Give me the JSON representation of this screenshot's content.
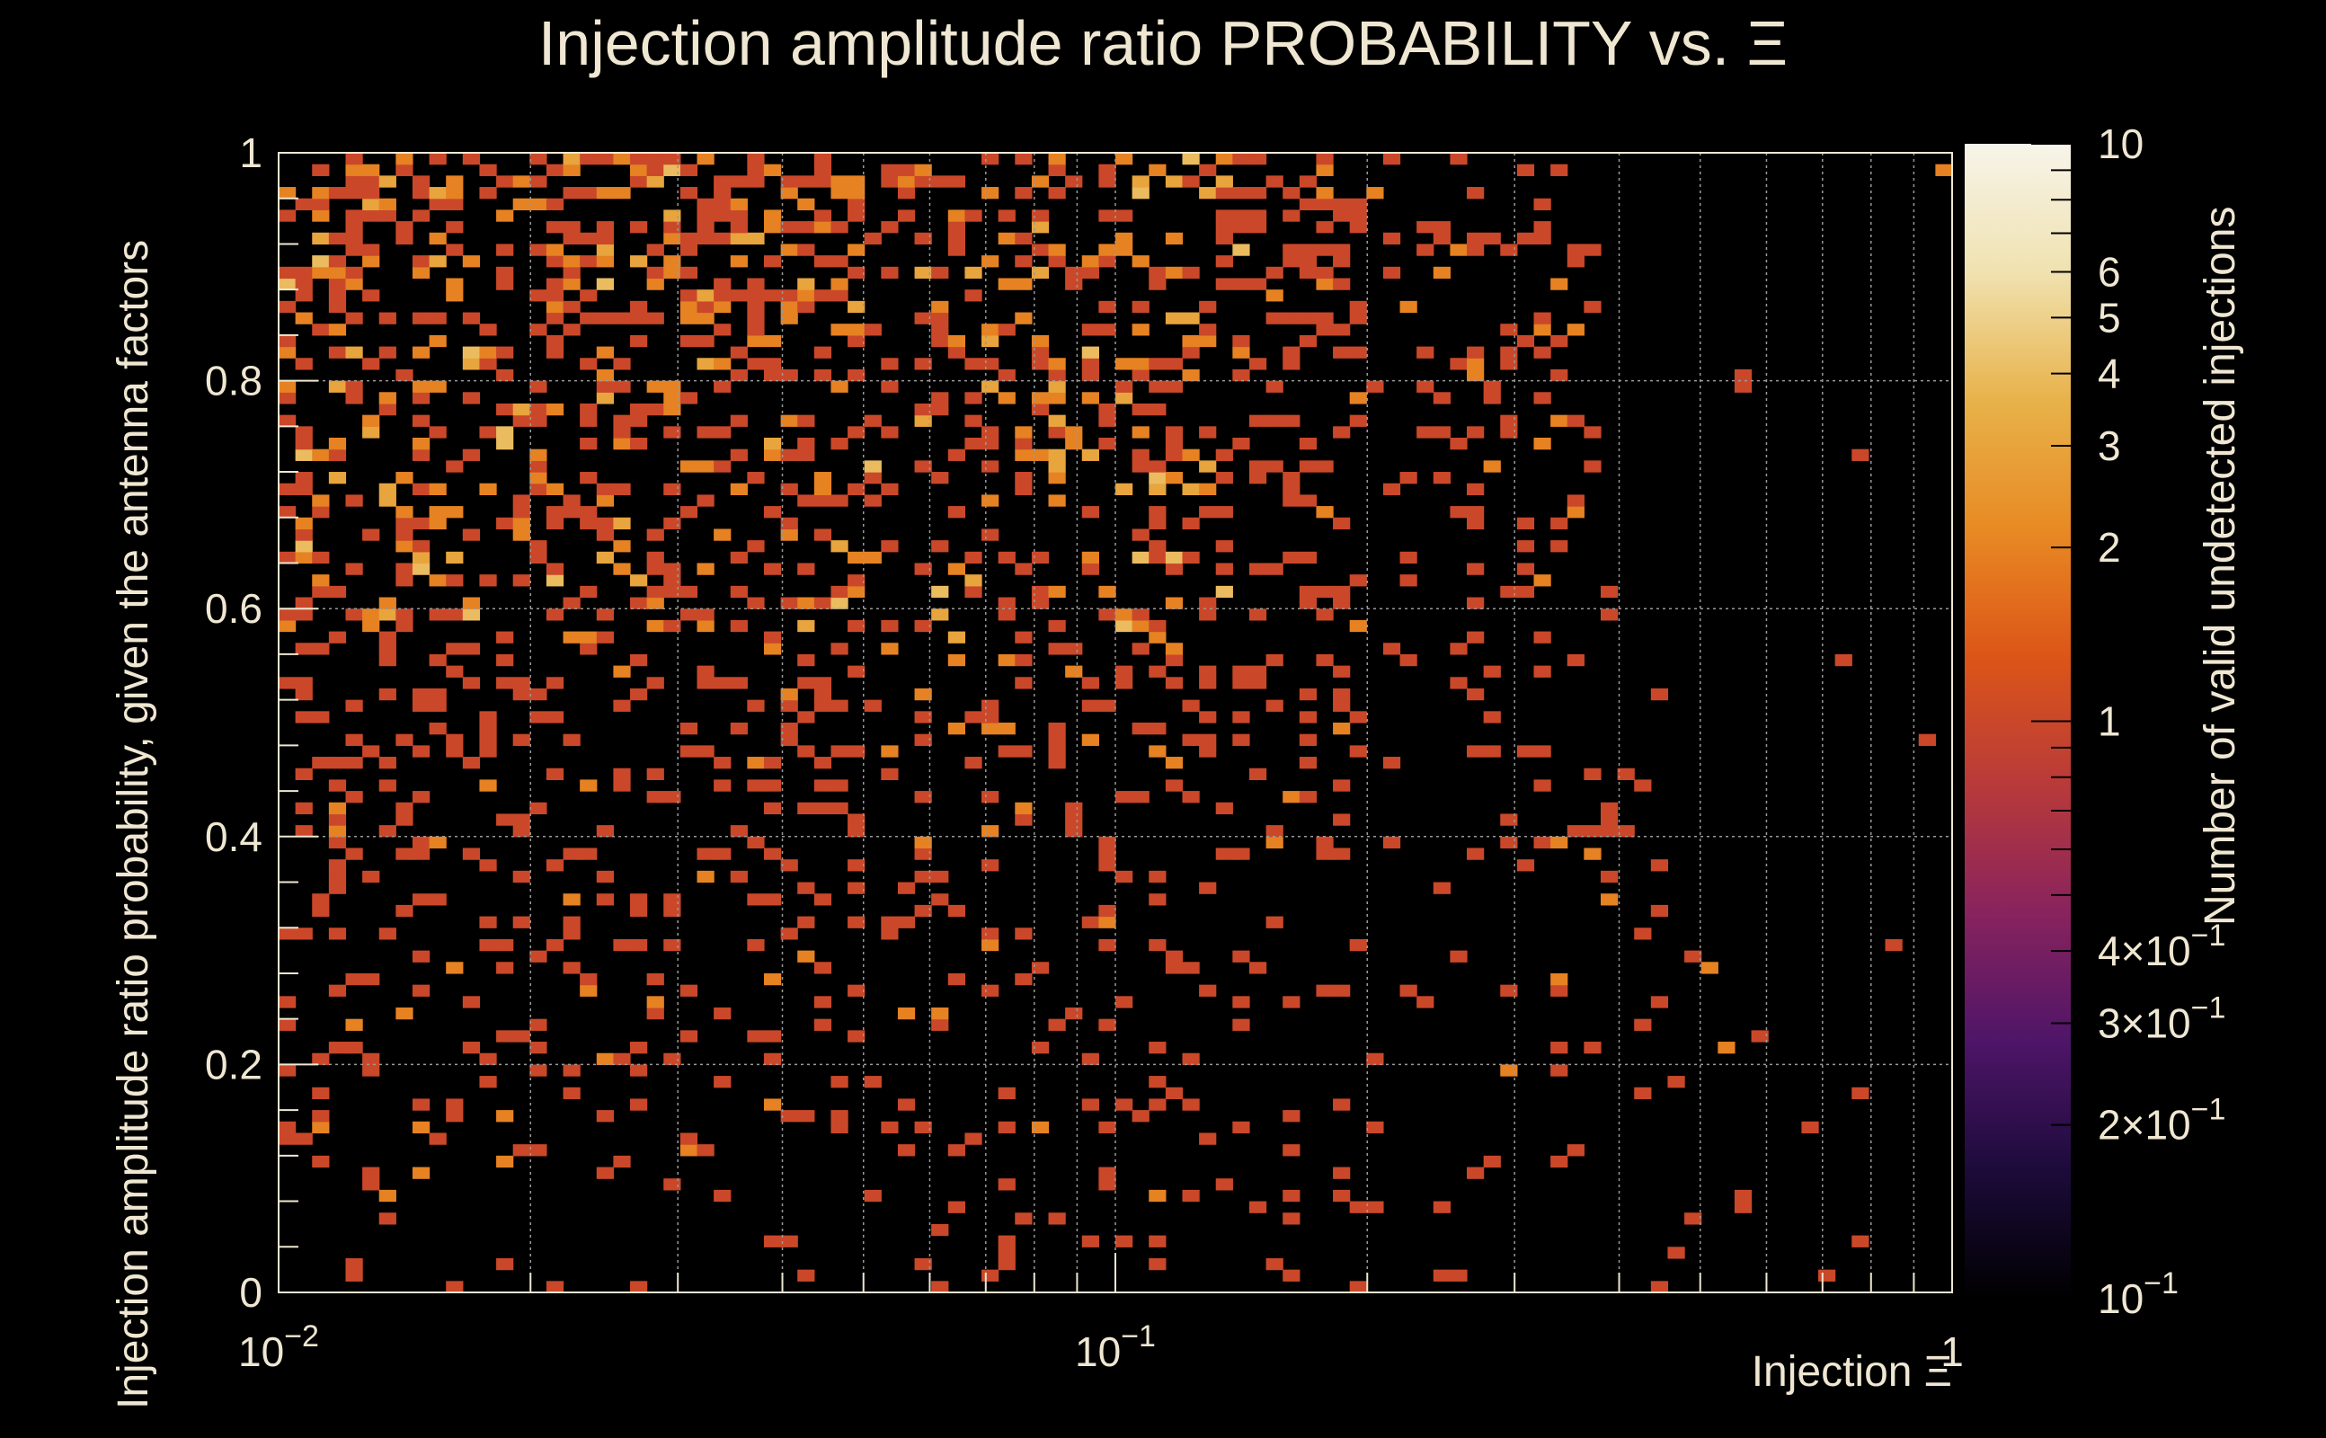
{
  "chart_data": {
    "type": "heatmap",
    "title": "Injection amplitude ratio PROBABILITY vs.  Ξ",
    "xlabel": "Injection Ξ",
    "ylabel": "Injection amplitude ratio probability, given the antenna factors",
    "zlabel": "Number of valid undetected injections",
    "x_scale": "log",
    "xlim": [
      0.01,
      1
    ],
    "ylim": [
      0,
      1
    ],
    "x_bins": 100,
    "y_bins": 100,
    "z_scale": "log",
    "zlim": [
      0.1,
      10
    ],
    "x_ticks": [
      {
        "value": 0.01,
        "base": "10",
        "exp": "−2"
      },
      {
        "value": 0.1,
        "base": "10",
        "exp": "−1"
      },
      {
        "value": 1,
        "base": "1",
        "exp": ""
      }
    ],
    "y_ticks": [
      "0",
      "0.2",
      "0.4",
      "0.6",
      "0.8",
      "1"
    ],
    "z_ticks": [
      {
        "value": 10,
        "label": "10",
        "exp": ""
      },
      {
        "value": 6,
        "label": "6",
        "exp": ""
      },
      {
        "value": 5,
        "label": "5",
        "exp": ""
      },
      {
        "value": 4,
        "label": "4",
        "exp": ""
      },
      {
        "value": 3,
        "label": "3",
        "exp": ""
      },
      {
        "value": 2,
        "label": "2",
        "exp": ""
      },
      {
        "value": 1,
        "label": "1",
        "exp": ""
      },
      {
        "value": 0.4,
        "label": "4×10",
        "exp": "−1"
      },
      {
        "value": 0.3,
        "label": "3×10",
        "exp": "−1"
      },
      {
        "value": 0.2,
        "label": "2×10",
        "exp": "−1"
      },
      {
        "value": 0.1,
        "label": "10",
        "exp": "−1"
      }
    ],
    "colormap": [
      "#000000",
      "#1c0b3a",
      "#4e1568",
      "#88235e",
      "#b83a3a",
      "#dc5518",
      "#e88a24",
      "#e8b24a",
      "#f0e2b0",
      "#f7f4ea"
    ],
    "grid": true,
    "cell_summary": "Sparse counts of 1-4 per bin; dense for Ξ < 0.2 and probability > 0.4, thinning toward larger Ξ and lower probability",
    "density_seed": 7
  }
}
